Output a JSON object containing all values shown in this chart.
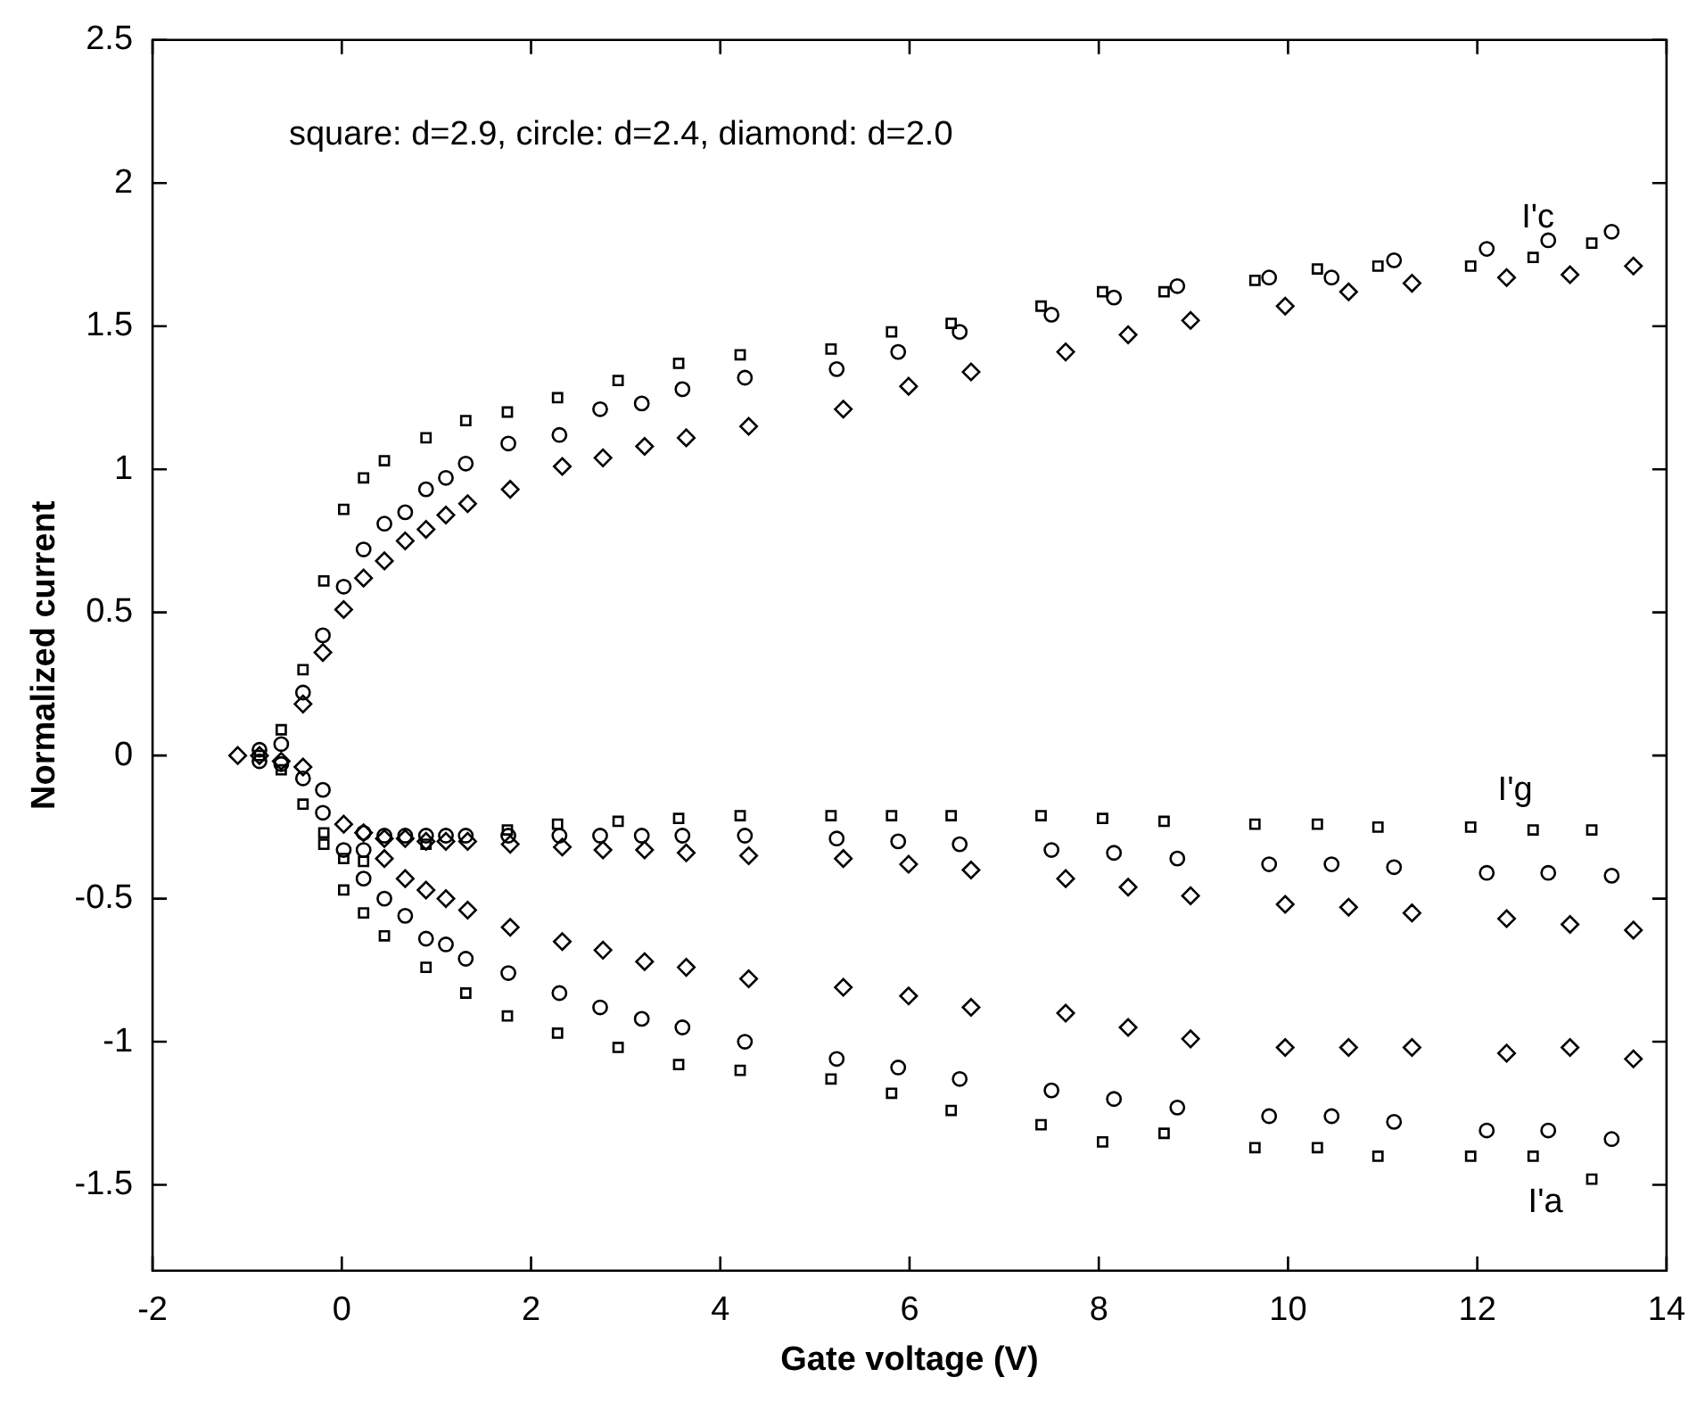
{
  "chart_data": {
    "type": "scatter",
    "xlabel": "Gate voltage (V)",
    "ylabel": "Normalized current",
    "xlim": [
      -2,
      14
    ],
    "xticks": [
      -2,
      0,
      2,
      4,
      6,
      8,
      10,
      12,
      14
    ],
    "ylim": [
      -1.8,
      2.5
    ],
    "yticks": [
      -1.5,
      -1,
      -0.5,
      0,
      0.5,
      1,
      1.5,
      2,
      2.5
    ],
    "annotations": [
      "square: d=2.9, circle: d=2.4, diamond: d=2.0",
      "I'c",
      "I'g",
      "I'a"
    ],
    "series": [
      {
        "color": "#000000",
        "marker": "square",
        "x": [
          -0.41,
          -0.19,
          0.02,
          0.23,
          0.45,
          0.89,
          1.31,
          1.75,
          2.28,
          2.92,
          3.56,
          4.21,
          5.17,
          5.81,
          6.44,
          7.39,
          8.04,
          8.69,
          9.65,
          10.31,
          10.95,
          11.93,
          12.59,
          13.21,
          -0.87,
          -0.64,
          -0.64,
          -0.41,
          -0.19,
          -0.19,
          0.02,
          0.02,
          0.23,
          0.23,
          0.45,
          0.89,
          0.89,
          1.31,
          1.75,
          1.75,
          2.28,
          2.28,
          2.92,
          2.92,
          3.56,
          3.56,
          4.21,
          4.21,
          5.17,
          5.17,
          5.81,
          5.81,
          6.44,
          6.44,
          7.39,
          7.39,
          8.04,
          8.04,
          8.69,
          8.69,
          9.65,
          9.65,
          10.31,
          10.31,
          10.95,
          10.95,
          11.93,
          11.93,
          12.59,
          12.59,
          13.21,
          13.21
        ],
        "values": [
          0.3,
          0.61,
          0.86,
          0.97,
          1.03,
          1.11,
          1.17,
          1.2,
          1.25,
          1.31,
          1.37,
          1.4,
          1.42,
          1.48,
          1.51,
          1.57,
          1.62,
          1.62,
          1.66,
          1.7,
          1.71,
          1.71,
          1.74,
          1.79,
          0.0,
          0.09,
          -0.05,
          -0.17,
          -0.27,
          -0.31,
          -0.36,
          -0.47,
          -0.37,
          -0.55,
          -0.63,
          -0.31,
          -0.74,
          -0.83,
          -0.26,
          -0.91,
          -0.24,
          -0.97,
          -0.23,
          -1.02,
          -0.22,
          -1.08,
          -0.21,
          -1.1,
          -0.21,
          -1.13,
          -0.21,
          -1.18,
          -0.21,
          -1.24,
          -0.21,
          -1.29,
          -0.22,
          -1.35,
          -0.23,
          -1.32,
          -0.24,
          -1.37,
          -0.24,
          -1.37,
          -0.25,
          -1.4,
          -0.25,
          -1.4,
          -0.26,
          -1.4,
          -0.26,
          -1.48
        ]
      },
      {
        "color": "#000000",
        "marker": "circle",
        "x": [
          -0.41,
          -0.2,
          0.02,
          0.23,
          0.45,
          0.67,
          0.89,
          1.1,
          1.31,
          1.76,
          2.3,
          2.73,
          3.17,
          3.6,
          4.26,
          5.23,
          5.88,
          6.53,
          7.5,
          8.16,
          8.83,
          9.8,
          10.46,
          11.12,
          12.1,
          12.75,
          13.42,
          -0.87,
          -0.87,
          -0.64,
          -0.64,
          -0.41,
          -0.2,
          -0.2,
          0.02,
          0.23,
          0.23,
          0.23,
          0.45,
          0.45,
          0.67,
          0.67,
          0.89,
          0.89,
          1.1,
          1.1,
          1.31,
          1.31,
          1.76,
          1.76,
          2.3,
          2.3,
          2.73,
          2.73,
          3.17,
          3.17,
          3.6,
          3.6,
          4.26,
          4.26,
          5.23,
          5.23,
          5.88,
          5.88,
          6.53,
          6.53,
          7.5,
          7.5,
          8.16,
          8.16,
          8.83,
          8.83,
          9.8,
          9.8,
          10.46,
          10.46,
          11.12,
          11.12,
          12.1,
          12.1,
          12.75,
          12.75,
          13.42,
          13.42
        ],
        "values": [
          0.22,
          0.42,
          0.59,
          0.72,
          0.81,
          0.85,
          0.93,
          0.97,
          1.02,
          1.09,
          1.12,
          1.21,
          1.23,
          1.28,
          1.32,
          1.35,
          1.41,
          1.48,
          1.54,
          1.6,
          1.64,
          1.67,
          1.67,
          1.73,
          1.77,
          1.8,
          1.83,
          0.02,
          -0.02,
          0.04,
          -0.03,
          -0.08,
          -0.12,
          -0.2,
          -0.33,
          -0.27,
          -0.33,
          -0.43,
          -0.28,
          -0.5,
          -0.28,
          -0.56,
          -0.28,
          -0.64,
          -0.28,
          -0.66,
          -0.28,
          -0.71,
          -0.28,
          -0.76,
          -0.28,
          -0.83,
          -0.28,
          -0.88,
          -0.28,
          -0.92,
          -0.28,
          -0.95,
          -0.28,
          -1.0,
          -0.29,
          -1.06,
          -0.3,
          -1.09,
          -0.31,
          -1.13,
          -0.33,
          -1.17,
          -0.34,
          -1.2,
          -0.36,
          -1.23,
          -0.38,
          -1.26,
          -0.38,
          -1.26,
          -0.39,
          -1.28,
          -0.41,
          -1.31,
          -0.41,
          -1.31,
          -0.42,
          -1.34
        ]
      },
      {
        "color": "#000000",
        "marker": "diamond",
        "x": [
          -0.41,
          -0.2,
          0.02,
          0.23,
          0.45,
          0.67,
          0.89,
          1.1,
          1.33,
          1.78,
          2.33,
          2.76,
          3.2,
          3.64,
          4.3,
          5.3,
          5.99,
          6.65,
          7.65,
          8.31,
          8.97,
          9.97,
          10.64,
          11.31,
          12.31,
          12.98,
          13.65,
          -1.1,
          -0.87,
          -0.64,
          -0.41,
          0.02,
          0.23,
          0.45,
          0.45,
          0.67,
          0.67,
          0.89,
          0.89,
          1.1,
          1.1,
          1.33,
          1.33,
          1.78,
          1.78,
          2.33,
          2.33,
          2.76,
          2.76,
          3.2,
          3.2,
          3.64,
          3.64,
          4.3,
          4.3,
          5.3,
          5.3,
          5.99,
          5.99,
          6.65,
          6.65,
          7.65,
          7.65,
          8.31,
          8.31,
          8.97,
          8.97,
          9.97,
          9.97,
          10.64,
          10.64,
          11.31,
          11.31,
          12.31,
          12.31,
          12.98,
          12.98,
          13.65,
          13.65
        ],
        "values": [
          0.18,
          0.36,
          0.51,
          0.62,
          0.68,
          0.75,
          0.79,
          0.84,
          0.88,
          0.93,
          1.01,
          1.04,
          1.08,
          1.11,
          1.15,
          1.21,
          1.29,
          1.34,
          1.41,
          1.47,
          1.52,
          1.57,
          1.62,
          1.65,
          1.67,
          1.68,
          1.71,
          0.0,
          0.0,
          -0.02,
          -0.04,
          -0.24,
          -0.27,
          -0.29,
          -0.36,
          -0.29,
          -0.43,
          -0.3,
          -0.47,
          -0.3,
          -0.5,
          -0.3,
          -0.54,
          -0.31,
          -0.6,
          -0.32,
          -0.65,
          -0.33,
          -0.68,
          -0.33,
          -0.72,
          -0.34,
          -0.74,
          -0.35,
          -0.78,
          -0.36,
          -0.81,
          -0.38,
          -0.84,
          -0.4,
          -0.88,
          -0.43,
          -0.9,
          -0.46,
          -0.95,
          -0.49,
          -0.99,
          -0.52,
          -1.02,
          -0.53,
          -1.02,
          -0.55,
          -1.02,
          -0.57,
          -1.04,
          -0.59,
          -1.02,
          -0.61,
          -1.06
        ]
      }
    ]
  }
}
